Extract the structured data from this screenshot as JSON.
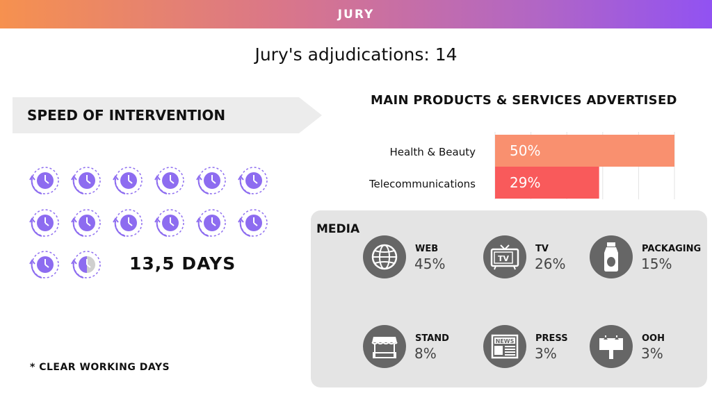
{
  "header": {
    "title": "JURY"
  },
  "page_title": "Jury's adjudications: 14",
  "speed": {
    "heading": "SPEED OF INTERVENTION",
    "days": "13,5 DAYS",
    "full_days": 13,
    "partial_day_fraction": 0.5,
    "clock_color": "#8d6cf0",
    "footnote": "* CLEAR WORKING DAYS"
  },
  "products": {
    "heading": "MAIN PRODUCTS & SERVICES ADVERTISED"
  },
  "chart_data": {
    "type": "bar",
    "orientation": "horizontal",
    "title": "MAIN PRODUCTS & SERVICES ADVERTISED",
    "categories": [
      "Health & Beauty",
      "Telecommunications"
    ],
    "values": [
      50,
      29
    ],
    "labels": [
      "50%",
      "29%"
    ],
    "colors": [
      "#f9906f",
      "#f95a5b"
    ],
    "xlim": [
      0,
      50
    ],
    "grid": true
  },
  "media": {
    "heading": "MEDIA",
    "items": [
      {
        "label": "WEB",
        "value": "45%",
        "icon": "globe-icon"
      },
      {
        "label": "TV",
        "value": "26%",
        "icon": "tv-icon",
        "icon_text": "TV"
      },
      {
        "label": "PACKAGING",
        "value": "15%",
        "icon": "bottle-icon"
      },
      {
        "label": "STAND",
        "value": "8%",
        "icon": "market-stand-icon"
      },
      {
        "label": "PRESS",
        "value": "3%",
        "icon": "newspaper-icon",
        "icon_text": "NEWS"
      },
      {
        "label": "OOH",
        "value": "3%",
        "icon": "billboard-icon"
      }
    ]
  }
}
